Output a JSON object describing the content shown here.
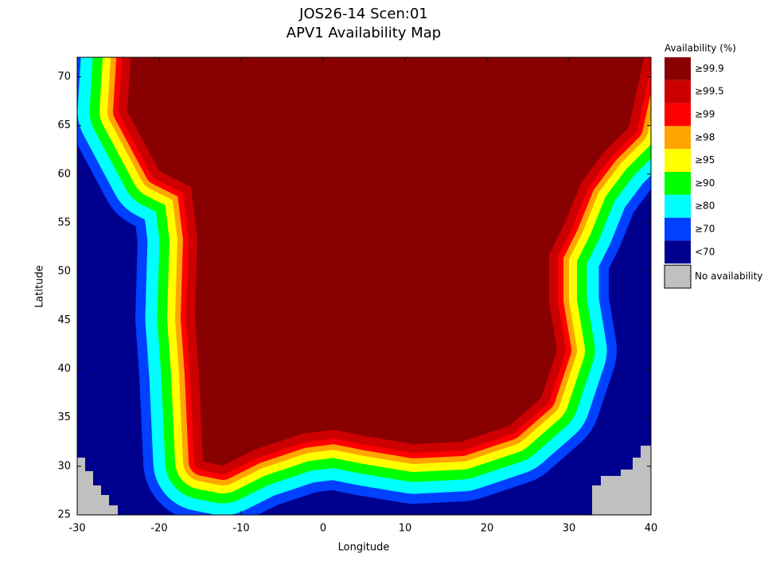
{
  "chart_data": {
    "type": "map",
    "title": "JOS26-14 Scen:01",
    "subtitle": "APV1 Availability Map",
    "xlabel": "Longitude",
    "ylabel": "Latitude",
    "xlim": [
      -30,
      40
    ],
    "ylim": [
      25,
      72
    ],
    "xticks": [
      -30,
      -20,
      -10,
      0,
      10,
      20,
      30,
      40
    ],
    "yticks": [
      25,
      30,
      35,
      40,
      45,
      50,
      55,
      60,
      65,
      70
    ],
    "legend": {
      "title": "Availability (%)",
      "position": "right",
      "items": [
        {
          "label": "≥99.9",
          "color": "#880000"
        },
        {
          "label": "≥99.5",
          "color": "#cc0000"
        },
        {
          "label": "≥99",
          "color": "#ff0000"
        },
        {
          "label": "≥98",
          "color": "#ffa500"
        },
        {
          "label": "≥95",
          "color": "#ffff00"
        },
        {
          "label": "≥90",
          "color": "#00ff00"
        },
        {
          "label": "≥80",
          "color": "#00ffff"
        },
        {
          "label": "≥70",
          "color": "#0040ff"
        },
        {
          "label": "<70",
          "color": "#00008f"
        },
        {
          "label": "No availability",
          "color": "#c0c0c0"
        }
      ]
    }
  }
}
